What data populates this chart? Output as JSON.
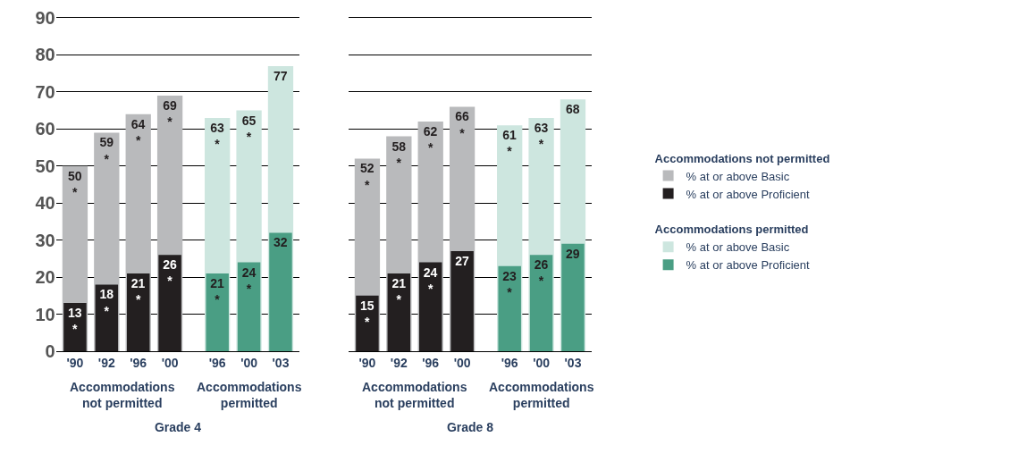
{
  "chart_data": [
    {
      "type": "bar",
      "xlabel": "Grade 4",
      "categories": [
        "'90",
        "'92",
        "'96",
        "'00",
        "'96",
        "'00",
        "'03"
      ],
      "ylim": [
        0,
        90
      ],
      "yticks": [
        0,
        10,
        20,
        30,
        40,
        50,
        60,
        70,
        80,
        90
      ],
      "grid": "y",
      "legend": "right",
      "legend_title": [
        "Accommodations not permitted",
        "Accommodations permitted"
      ],
      "series": [
        {
          "name": "% at or above Basic",
          "color": "#b9babc",
          "values": [
            50,
            59,
            64,
            69,
            null,
            null,
            null
          ],
          "value_labels": [
            "50\n*",
            "59\n*",
            "64\n*",
            "69\n*",
            null,
            null,
            null
          ]
        },
        {
          "name": "% at or above Proficient",
          "color": "#231f20",
          "values": [
            13,
            18,
            21,
            26,
            null,
            null,
            null
          ],
          "value_labels": [
            "13\n*",
            "18\n*",
            "21\n*",
            "26\n*",
            null,
            null,
            null
          ]
        },
        {
          "name": "% at or above Basic",
          "color": "#cde6df",
          "values": [
            null,
            null,
            null,
            null,
            63,
            65,
            77
          ],
          "value_labels": [
            null,
            null,
            null,
            null,
            "63\n*",
            "65\n*",
            "77"
          ]
        },
        {
          "name": "% at or above Proficient",
          "color": "#4a9e84",
          "values": [
            null,
            null,
            null,
            null,
            21,
            24,
            32
          ],
          "value_labels": [
            null,
            null,
            null,
            null,
            "21\n*",
            "24\n*",
            "32"
          ]
        }
      ],
      "annotations": [
        "Accommodations\nnot permitted",
        "Accommodations\npermitted"
      ]
    },
    {
      "type": "bar",
      "xlabel": "Grade 8",
      "categories": [
        "'90",
        "'92",
        "'96",
        "'00",
        "'96",
        "'00",
        "'03"
      ],
      "ylim": [
        0,
        90
      ],
      "yticks": [
        0,
        10,
        20,
        30,
        40,
        50,
        60,
        70,
        80,
        90
      ],
      "grid": "y",
      "tick_labels": "x",
      "series": [
        {
          "color": "#b9babc",
          "values": [
            52,
            58,
            62,
            66,
            null,
            null,
            null
          ],
          "value_labels": [
            "52\n*",
            "58\n*",
            "62\n*",
            "66\n*",
            null,
            null,
            null
          ]
        },
        {
          "color": "#231f20",
          "values": [
            15,
            21,
            24,
            27,
            null,
            null,
            null
          ],
          "value_labels": [
            "15\n*",
            "21\n*",
            "24\n*",
            "27",
            null,
            null,
            null
          ]
        },
        {
          "color": "#cde6df",
          "values": [
            null,
            null,
            null,
            null,
            61,
            63,
            68
          ],
          "value_labels": [
            null,
            null,
            null,
            null,
            "61\n*",
            "63\n*",
            "68"
          ]
        },
        {
          "color": "#4a9e84",
          "values": [
            null,
            null,
            null,
            null,
            23,
            26,
            29
          ],
          "value_labels": [
            null,
            null,
            null,
            null,
            "23\n*",
            "26\n*",
            "29"
          ]
        }
      ],
      "annotations": [
        "Accommodations\nnot permitted",
        "Accommodations\npermitted"
      ]
    }
  ]
}
